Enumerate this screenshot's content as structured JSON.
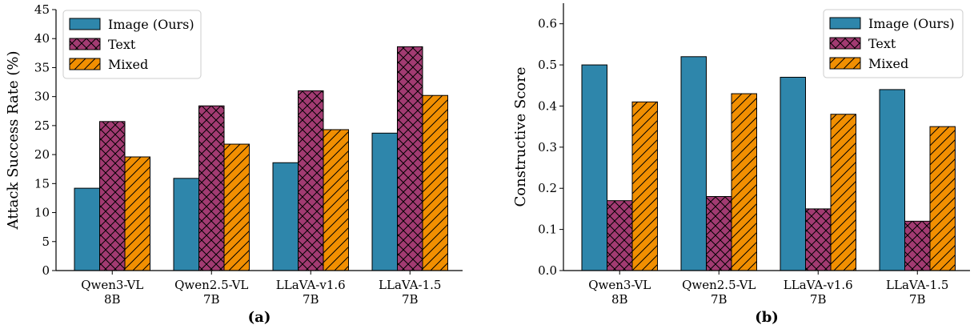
{
  "colors": {
    "series": [
      "#2e86ab",
      "#a23b72",
      "#f18f01"
    ],
    "edge": "#000000"
  },
  "chart_data": [
    {
      "type": "bar",
      "panel_label": "(a)",
      "categories": [
        [
          "Qwen3-VL",
          "8B"
        ],
        [
          "Qwen2.5-VL",
          "7B"
        ],
        [
          "LLaVA-v1.6",
          "7B"
        ],
        [
          "LLaVA-1.5",
          "7B"
        ]
      ],
      "series": [
        {
          "name": "Image (Ours)",
          "hatch": "none",
          "values": [
            14.2,
            15.9,
            18.6,
            23.7
          ]
        },
        {
          "name": "Text",
          "hatch": "crosshatch",
          "values": [
            25.7,
            28.4,
            31.0,
            38.6
          ]
        },
        {
          "name": "Mixed",
          "hatch": "diagonal",
          "values": [
            19.6,
            21.8,
            24.3,
            30.2
          ]
        }
      ],
      "ylabel": "Attack Success Rate (%)",
      "xlabel": "",
      "ylim": [
        0,
        45
      ],
      "yticks": [
        "0",
        "5",
        "10",
        "15",
        "20",
        "25",
        "30",
        "35",
        "40",
        "45"
      ],
      "legend_position": "top-left",
      "grid": false
    },
    {
      "type": "bar",
      "panel_label": "(b)",
      "categories": [
        [
          "Qwen3-VL",
          "8B"
        ],
        [
          "Qwen2.5-VL",
          "7B"
        ],
        [
          "LLaVA-v1.6",
          "7B"
        ],
        [
          "LLaVA-1.5",
          "7B"
        ]
      ],
      "series": [
        {
          "name": "Image (Ours)",
          "hatch": "none",
          "values": [
            0.5,
            0.52,
            0.47,
            0.44
          ]
        },
        {
          "name": "Text",
          "hatch": "crosshatch",
          "values": [
            0.17,
            0.18,
            0.15,
            0.12
          ]
        },
        {
          "name": "Mixed",
          "hatch": "diagonal",
          "values": [
            0.41,
            0.43,
            0.38,
            0.35
          ]
        }
      ],
      "ylabel": "Constructive Score",
      "xlabel": "",
      "ylim": [
        0,
        0.65
      ],
      "yticks": [
        "0.0",
        "0.1",
        "0.2",
        "0.3",
        "0.4",
        "0.5",
        "0.6"
      ],
      "legend_position": "top-right",
      "grid": false
    }
  ]
}
